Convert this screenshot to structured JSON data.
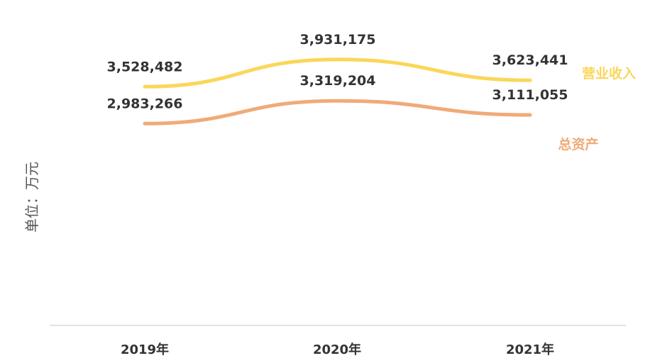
{
  "chart_data": {
    "type": "line",
    "categories": [
      "2019年",
      "2020年",
      "2021年"
    ],
    "ylabel": "单位：万元",
    "ylim": [
      0,
      4600000
    ],
    "grid": false,
    "legend": "inline-right",
    "series": [
      {
        "name": "营业收入",
        "color": "#FAD75A",
        "values": [
          3528482,
          3931175,
          3623441
        ],
        "labels": [
          "3,528,482",
          "3,931,175",
          "3,623,441"
        ]
      },
      {
        "name": "总资产",
        "color": "#F0AA78",
        "values": [
          2983266,
          3319204,
          3111055
        ],
        "labels": [
          "2,983,266",
          "3,319,204",
          "3,111,055"
        ]
      }
    ]
  }
}
